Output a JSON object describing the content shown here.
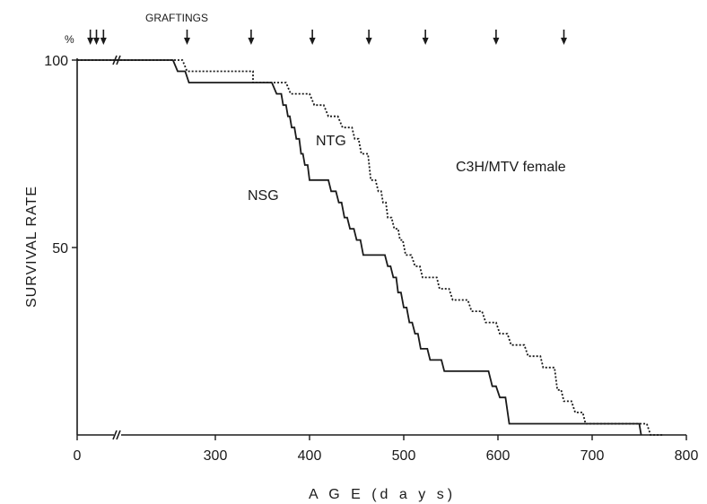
{
  "chart_data": {
    "type": "line",
    "title": "",
    "xlabel": "A G E (d a y s)",
    "ylabel": "SURVIVAL RATE",
    "y_unit": "%",
    "xlim": [
      0,
      800
    ],
    "ylim": [
      0,
      100
    ],
    "x_ticks": [
      0,
      300,
      400,
      500,
      600,
      700,
      800
    ],
    "x_tick_labels": [
      "0",
      "300",
      "400",
      "500",
      "600",
      "700",
      "800"
    ],
    "y_ticks": [
      50,
      100
    ],
    "y_tick_labels": [
      "50",
      "100"
    ],
    "axis_break": true,
    "grid": false,
    "annotations": {
      "graftings_label": "GRAFTINGS",
      "strain_label": "C3H/MTV female"
    },
    "graftings_days": [
      15,
      22,
      30,
      270,
      338,
      403,
      463,
      523,
      598,
      670
    ],
    "series": [
      {
        "name": "NTG",
        "style": "dotted",
        "color": "#1a1a1a",
        "points": [
          [
            0,
            100
          ],
          [
            45,
            100
          ],
          [
            265,
            100
          ],
          [
            270,
            97
          ],
          [
            340,
            97
          ],
          [
            340,
            94
          ],
          [
            375,
            94
          ],
          [
            380,
            91
          ],
          [
            400,
            91
          ],
          [
            405,
            88
          ],
          [
            415,
            88
          ],
          [
            420,
            85
          ],
          [
            430,
            85
          ],
          [
            435,
            82
          ],
          [
            445,
            82
          ],
          [
            448,
            79
          ],
          [
            452,
            79
          ],
          [
            455,
            75
          ],
          [
            462,
            75
          ],
          [
            465,
            68
          ],
          [
            470,
            68
          ],
          [
            473,
            65
          ],
          [
            476,
            65
          ],
          [
            478,
            62
          ],
          [
            481,
            62
          ],
          [
            483,
            58
          ],
          [
            487,
            58
          ],
          [
            490,
            55
          ],
          [
            494,
            55
          ],
          [
            496,
            52
          ],
          [
            499,
            52
          ],
          [
            502,
            48
          ],
          [
            508,
            48
          ],
          [
            512,
            45
          ],
          [
            517,
            45
          ],
          [
            520,
            42
          ],
          [
            535,
            42
          ],
          [
            538,
            39
          ],
          [
            548,
            39
          ],
          [
            552,
            36
          ],
          [
            568,
            36
          ],
          [
            572,
            33
          ],
          [
            583,
            33
          ],
          [
            587,
            30
          ],
          [
            598,
            30
          ],
          [
            602,
            27
          ],
          [
            610,
            27
          ],
          [
            614,
            24
          ],
          [
            628,
            24
          ],
          [
            632,
            21
          ],
          [
            645,
            21
          ],
          [
            648,
            18
          ],
          [
            660,
            18
          ],
          [
            663,
            12
          ],
          [
            667,
            12
          ],
          [
            670,
            9
          ],
          [
            678,
            9
          ],
          [
            682,
            6
          ],
          [
            690,
            6
          ],
          [
            693,
            3
          ],
          [
            758,
            3
          ],
          [
            762,
            0
          ],
          [
            775,
            0
          ]
        ]
      },
      {
        "name": "NSG",
        "style": "solid",
        "color": "#1a1a1a",
        "points": [
          [
            0,
            100
          ],
          [
            45,
            100
          ],
          [
            255,
            100
          ],
          [
            260,
            97
          ],
          [
            268,
            97
          ],
          [
            272,
            94
          ],
          [
            360,
            94
          ],
          [
            365,
            91
          ],
          [
            370,
            91
          ],
          [
            372,
            88
          ],
          [
            375,
            88
          ],
          [
            377,
            85
          ],
          [
            379,
            85
          ],
          [
            381,
            82
          ],
          [
            384,
            82
          ],
          [
            386,
            79
          ],
          [
            389,
            79
          ],
          [
            391,
            75
          ],
          [
            393,
            75
          ],
          [
            395,
            72
          ],
          [
            398,
            72
          ],
          [
            400,
            68
          ],
          [
            420,
            68
          ],
          [
            423,
            65
          ],
          [
            428,
            65
          ],
          [
            431,
            62
          ],
          [
            434,
            62
          ],
          [
            437,
            58
          ],
          [
            440,
            58
          ],
          [
            443,
            55
          ],
          [
            447,
            55
          ],
          [
            450,
            52
          ],
          [
            454,
            52
          ],
          [
            457,
            48
          ],
          [
            480,
            48
          ],
          [
            483,
            45
          ],
          [
            486,
            45
          ],
          [
            489,
            42
          ],
          [
            492,
            42
          ],
          [
            494,
            38
          ],
          [
            497,
            38
          ],
          [
            500,
            34
          ],
          [
            503,
            34
          ],
          [
            506,
            30
          ],
          [
            509,
            30
          ],
          [
            512,
            27
          ],
          [
            515,
            27
          ],
          [
            518,
            23
          ],
          [
            525,
            23
          ],
          [
            528,
            20
          ],
          [
            540,
            20
          ],
          [
            543,
            17
          ],
          [
            590,
            17
          ],
          [
            594,
            13
          ],
          [
            598,
            13
          ],
          [
            602,
            10
          ],
          [
            608,
            10
          ],
          [
            612,
            3
          ],
          [
            750,
            3
          ],
          [
            752,
            0
          ]
        ]
      }
    ]
  }
}
